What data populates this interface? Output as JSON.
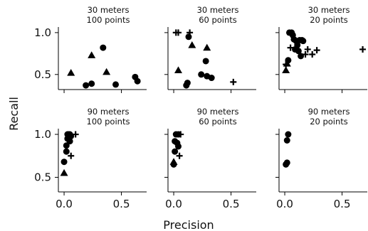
{
  "chart_data": {
    "type": "scatter",
    "xlabel": "Precision",
    "ylabel": "Recall",
    "xlim": [
      -0.05,
      0.72
    ],
    "xticks": [
      0.0,
      0.5
    ],
    "xtick_labels": [
      "0.0",
      "0.5"
    ],
    "grid": false,
    "rows": [
      {
        "ylim": [
          0.32,
          1.05
        ],
        "yticks": [
          0.5,
          1.0
        ],
        "ytick_labels": [
          "0.5",
          "1.0"
        ]
      },
      {
        "ylim": [
          0.33,
          1.05
        ],
        "yticks": [
          0.5,
          1.0
        ],
        "ytick_labels": [
          "0.5",
          "1.0"
        ]
      }
    ],
    "panels": [
      {
        "title_line1": "30 meters",
        "title_line2": "100 points",
        "row": 0,
        "col": 0,
        "triangles": [
          [
            0.06,
            0.52
          ],
          [
            0.24,
            0.73
          ],
          [
            0.37,
            0.53
          ]
        ],
        "circles": [
          [
            0.19,
            0.37
          ],
          [
            0.24,
            0.39
          ],
          [
            0.34,
            0.82
          ],
          [
            0.45,
            0.38
          ],
          [
            0.62,
            0.47
          ],
          [
            0.64,
            0.42
          ]
        ],
        "pluses": []
      },
      {
        "title_line1": "30 meters",
        "title_line2": "60 points",
        "row": 0,
        "col": 1,
        "triangles": [
          [
            0.04,
            0.55
          ],
          [
            0.16,
            0.85
          ],
          [
            0.29,
            0.82
          ]
        ],
        "circles": [
          [
            0.11,
            0.37
          ],
          [
            0.12,
            0.4
          ],
          [
            0.13,
            0.95
          ],
          [
            0.24,
            0.5
          ],
          [
            0.28,
            0.66
          ],
          [
            0.29,
            0.48
          ],
          [
            0.33,
            0.46
          ]
        ],
        "pluses": [
          [
            0.02,
            1.0
          ],
          [
            0.04,
            1.0
          ],
          [
            0.14,
            1.0
          ],
          [
            0.52,
            0.41
          ]
        ]
      },
      {
        "title_line1": "30 meters",
        "title_line2": "20 points",
        "row": 0,
        "col": 2,
        "triangles": [
          [
            0.01,
            0.55
          ],
          [
            0.02,
            0.63
          ]
        ],
        "circles": [
          [
            0.03,
            0.67
          ],
          [
            0.04,
            1.0
          ],
          [
            0.06,
            1.0
          ],
          [
            0.07,
            0.97
          ],
          [
            0.08,
            0.92
          ],
          [
            0.09,
            0.8
          ],
          [
            0.1,
            0.9
          ],
          [
            0.11,
            0.85
          ],
          [
            0.12,
            0.78
          ],
          [
            0.13,
            0.91
          ],
          [
            0.14,
            0.72
          ],
          [
            0.15,
            0.91
          ],
          [
            0.16,
            0.9
          ]
        ],
        "pluses": [
          [
            0.01,
            0.62
          ],
          [
            0.05,
            0.82
          ],
          [
            0.18,
            0.74
          ],
          [
            0.2,
            0.8
          ],
          [
            0.24,
            0.74
          ],
          [
            0.28,
            0.79
          ],
          [
            0.68,
            0.8
          ]
        ]
      },
      {
        "title_line1": "90 meters",
        "title_line2": "100 points",
        "row": 1,
        "col": 0,
        "triangles": [
          [
            0.0,
            0.55
          ]
        ],
        "circles": [
          [
            0.0,
            0.68
          ],
          [
            0.02,
            0.8
          ],
          [
            0.02,
            0.87
          ],
          [
            0.03,
            0.95
          ],
          [
            0.03,
            1.0
          ],
          [
            0.04,
            1.0
          ],
          [
            0.05,
            0.92
          ],
          [
            0.05,
            1.0
          ],
          [
            0.06,
            0.98
          ]
        ],
        "pluses": [
          [
            0.06,
            0.75
          ],
          [
            0.1,
            1.0
          ]
        ]
      },
      {
        "title_line1": "90 meters",
        "title_line2": "60 points",
        "row": 1,
        "col": 1,
        "triangles": [
          [
            0.0,
            0.68
          ]
        ],
        "circles": [
          [
            0.0,
            0.65
          ],
          [
            0.01,
            0.8
          ],
          [
            0.01,
            0.92
          ],
          [
            0.02,
            1.0
          ],
          [
            0.03,
            0.9
          ],
          [
            0.04,
            1.0
          ],
          [
            0.04,
            0.86
          ]
        ],
        "pluses": [
          [
            0.05,
            0.75
          ],
          [
            0.06,
            1.0
          ]
        ]
      },
      {
        "title_line1": "90 meters",
        "title_line2": "20 points",
        "row": 1,
        "col": 2,
        "triangles": [],
        "circles": [
          [
            0.01,
            0.65
          ],
          [
            0.02,
            0.67
          ],
          [
            0.02,
            0.93
          ],
          [
            0.03,
            1.0
          ]
        ],
        "pluses": []
      }
    ]
  }
}
